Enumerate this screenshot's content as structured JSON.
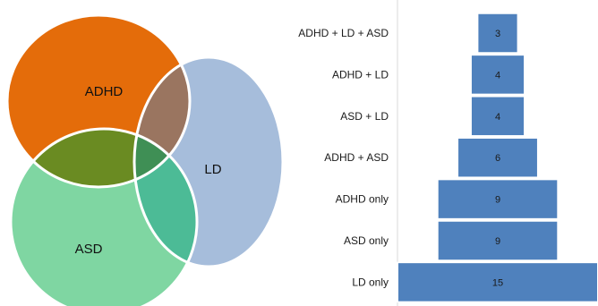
{
  "venn": {
    "sets": [
      {
        "name": "ADHD",
        "color": "#e46c0a"
      },
      {
        "name": "LD",
        "color": "#a6bddb"
      },
      {
        "name": "ASD",
        "color": "#7fd6a2"
      }
    ],
    "overlap_colors": {
      "ADHD+LD": "#9a7560",
      "ADHD+ASD": "#6a8b22",
      "LD+ASD": "#4cbb96",
      "ADHD+LD+ASD": "#3f8f55"
    }
  },
  "chart_data": {
    "type": "bar",
    "orientation": "horizontal",
    "style": "centered funnel",
    "categories": [
      "ADHD + LD + ASD",
      "ADHD + LD",
      "ASD + LD",
      "ADHD + ASD",
      "ADHD only",
      "ASD only",
      "LD only"
    ],
    "values": [
      3,
      4,
      4,
      6,
      9,
      9,
      15
    ],
    "data_labels": [
      "3",
      "4",
      "4",
      "6",
      "9",
      "9",
      "15"
    ],
    "bar_color": "#4f81bd",
    "title": "",
    "xlabel": "",
    "ylabel": "",
    "grid": false,
    "legend": "none"
  }
}
